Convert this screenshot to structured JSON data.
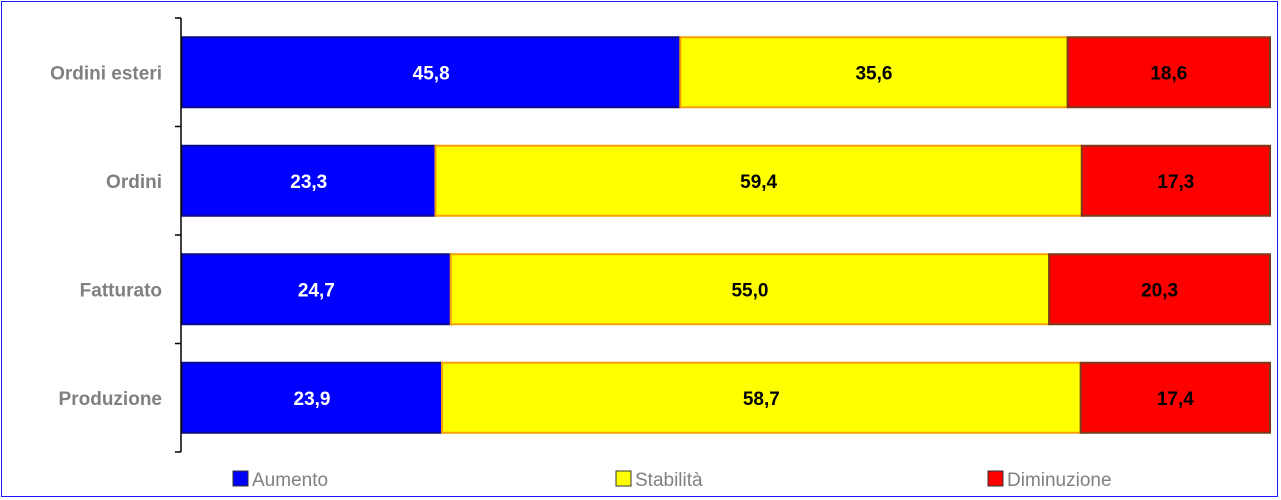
{
  "chart_data": {
    "type": "bar",
    "orientation": "horizontal",
    "stacked": "percent",
    "title": "",
    "xlabel": "",
    "ylabel": "",
    "xlim": [
      0,
      100
    ],
    "grid": false,
    "legend_position": "bottom",
    "categories": [
      "Ordini esteri",
      "Ordini",
      "Fatturato",
      "Produzione"
    ],
    "series": [
      {
        "name": "Aumento",
        "values": [
          45.8,
          23.3,
          24.7,
          23.9
        ],
        "value_labels": [
          "45,8",
          "23,3",
          "24,7",
          "23,9"
        ],
        "color": "#0000ff",
        "label_color": "#ffffff"
      },
      {
        "name": "Stabilità",
        "values": [
          35.6,
          59.4,
          55.0,
          58.7
        ],
        "value_labels": [
          "35,6",
          "59,4",
          "55,0",
          "58,7"
        ],
        "color": "#ffff00",
        "label_color": "#000000"
      },
      {
        "name": "Diminuzione",
        "values": [
          18.6,
          17.3,
          20.3,
          17.4
        ],
        "value_labels": [
          "18,6",
          "17,3",
          "20,3",
          "17,4"
        ],
        "color": "#ff0000",
        "label_color": "#000000"
      }
    ]
  }
}
